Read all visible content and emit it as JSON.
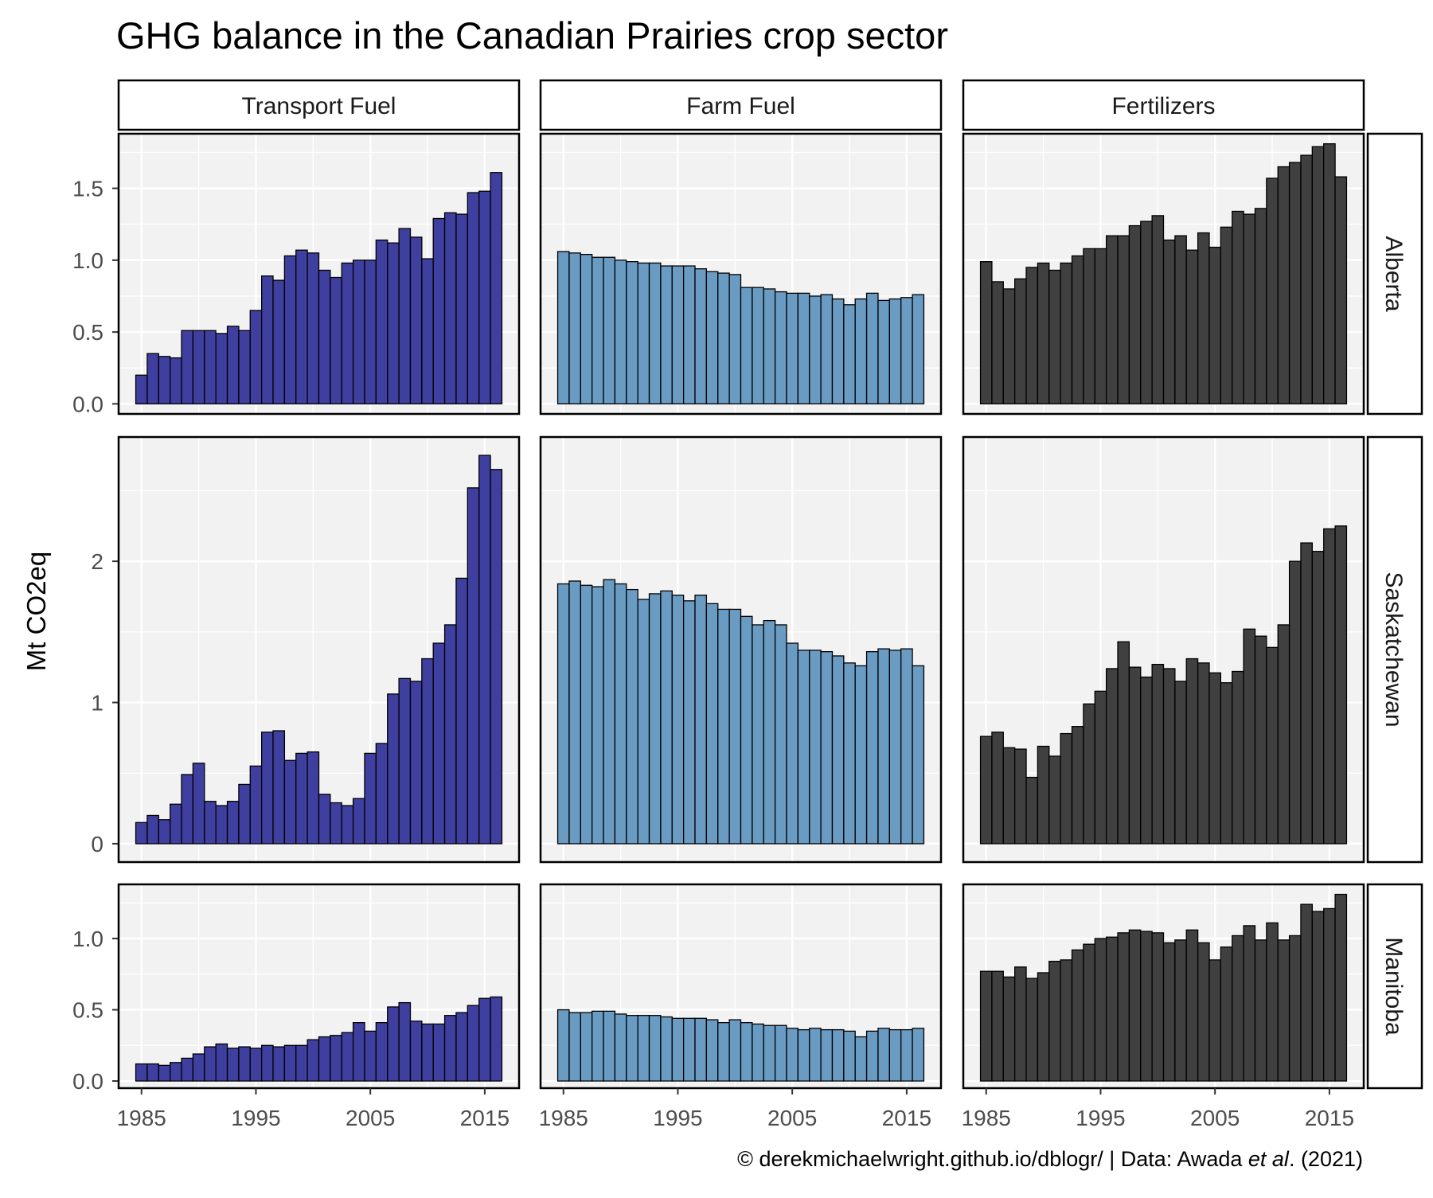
{
  "title": "GHG balance in the Canadian Prairies crop sector",
  "caption": {
    "prefix": "© derekmichaelwright.github.io/dblogr/  |  Data: Awada ",
    "italic": "et al",
    "suffix": ". (2021)"
  },
  "chart_data": {
    "type": "bar",
    "layout": "facet-grid",
    "ylabel": "Mt CO2eq",
    "xlabel": "",
    "years": [
      1985,
      1986,
      1987,
      1988,
      1989,
      1990,
      1991,
      1992,
      1993,
      1994,
      1995,
      1996,
      1997,
      1998,
      1999,
      2000,
      2001,
      2002,
      2003,
      2004,
      2005,
      2006,
      2007,
      2008,
      2009,
      2010,
      2011,
      2012,
      2013,
      2014,
      2015,
      2016
    ],
    "x_ticks": [
      1985,
      1995,
      2005,
      2015
    ],
    "x_range": [
      1983,
      2018
    ],
    "columns": [
      {
        "label": "Transport Fuel",
        "color": "#3f3f9f"
      },
      {
        "label": "Farm Fuel",
        "color": "#6a9bc3"
      },
      {
        "label": "Fertilizers",
        "color": "#404040"
      }
    ],
    "rows": [
      {
        "label": "Alberta",
        "ylim": [
          -0.07,
          1.88
        ],
        "y_ticks": [
          0.0,
          0.5,
          1.0,
          1.5
        ],
        "y_tick_labels": [
          "0.0",
          "0.5",
          "1.0",
          "1.5"
        ],
        "series": [
          {
            "name": "Transport Fuel",
            "values": [
              0.2,
              0.35,
              0.33,
              0.32,
              0.51,
              0.51,
              0.51,
              0.49,
              0.54,
              0.51,
              0.65,
              0.89,
              0.86,
              1.03,
              1.07,
              1.05,
              0.93,
              0.88,
              0.98,
              1.0,
              1.0,
              1.14,
              1.12,
              1.22,
              1.16,
              1.01,
              1.29,
              1.33,
              1.32,
              1.47,
              1.48,
              1.61
            ]
          },
          {
            "name": "Farm Fuel",
            "values": [
              1.06,
              1.05,
              1.04,
              1.02,
              1.02,
              1.0,
              0.99,
              0.98,
              0.98,
              0.96,
              0.96,
              0.96,
              0.94,
              0.92,
              0.91,
              0.9,
              0.81,
              0.81,
              0.8,
              0.78,
              0.77,
              0.77,
              0.75,
              0.76,
              0.73,
              0.69,
              0.73,
              0.77,
              0.72,
              0.73,
              0.74,
              0.76
            ]
          },
          {
            "name": "Fertilizers",
            "values": [
              0.99,
              0.85,
              0.8,
              0.87,
              0.95,
              0.98,
              0.93,
              0.98,
              1.03,
              1.08,
              1.08,
              1.17,
              1.17,
              1.24,
              1.27,
              1.31,
              1.14,
              1.17,
              1.07,
              1.19,
              1.09,
              1.23,
              1.34,
              1.32,
              1.36,
              1.57,
              1.65,
              1.68,
              1.73,
              1.79,
              1.81,
              1.58
            ]
          }
        ]
      },
      {
        "label": "Saskatchewan",
        "ylim": [
          -0.13,
          2.88
        ],
        "y_ticks": [
          0,
          1,
          2
        ],
        "y_tick_labels": [
          "0",
          "1",
          "2"
        ],
        "series": [
          {
            "name": "Transport Fuel",
            "values": [
              0.15,
              0.2,
              0.17,
              0.28,
              0.49,
              0.57,
              0.3,
              0.27,
              0.3,
              0.42,
              0.55,
              0.79,
              0.8,
              0.59,
              0.64,
              0.65,
              0.35,
              0.29,
              0.27,
              0.32,
              0.64,
              0.71,
              1.06,
              1.17,
              1.15,
              1.31,
              1.42,
              1.55,
              1.88,
              2.52,
              2.75,
              2.65
            ]
          },
          {
            "name": "Farm Fuel",
            "values": [
              1.84,
              1.86,
              1.83,
              1.82,
              1.87,
              1.84,
              1.8,
              1.73,
              1.77,
              1.79,
              1.76,
              1.72,
              1.76,
              1.7,
              1.66,
              1.66,
              1.61,
              1.55,
              1.58,
              1.55,
              1.42,
              1.37,
              1.37,
              1.36,
              1.33,
              1.28,
              1.26,
              1.36,
              1.38,
              1.37,
              1.38,
              1.26
            ]
          },
          {
            "name": "Fertilizers",
            "values": [
              0.76,
              0.79,
              0.68,
              0.67,
              0.47,
              0.69,
              0.62,
              0.78,
              0.83,
              0.99,
              1.08,
              1.24,
              1.43,
              1.25,
              1.18,
              1.27,
              1.24,
              1.15,
              1.31,
              1.28,
              1.21,
              1.14,
              1.22,
              1.52,
              1.47,
              1.39,
              1.55,
              2.0,
              2.13,
              2.07,
              2.23,
              2.25
            ]
          }
        ]
      },
      {
        "label": "Manitoba",
        "ylim": [
          -0.05,
          1.38
        ],
        "y_ticks": [
          0.0,
          0.5,
          1.0
        ],
        "y_tick_labels": [
          "0.0",
          "0.5",
          "1.0"
        ],
        "series": [
          {
            "name": "Transport Fuel",
            "values": [
              0.12,
              0.12,
              0.11,
              0.13,
              0.16,
              0.19,
              0.24,
              0.26,
              0.23,
              0.24,
              0.23,
              0.25,
              0.24,
              0.25,
              0.25,
              0.29,
              0.31,
              0.32,
              0.34,
              0.41,
              0.35,
              0.41,
              0.52,
              0.55,
              0.42,
              0.4,
              0.4,
              0.46,
              0.48,
              0.53,
              0.58,
              0.59
            ]
          },
          {
            "name": "Farm Fuel",
            "values": [
              0.5,
              0.48,
              0.48,
              0.49,
              0.49,
              0.47,
              0.46,
              0.46,
              0.46,
              0.45,
              0.44,
              0.44,
              0.44,
              0.43,
              0.41,
              0.43,
              0.41,
              0.4,
              0.39,
              0.39,
              0.37,
              0.36,
              0.37,
              0.36,
              0.36,
              0.35,
              0.31,
              0.35,
              0.37,
              0.36,
              0.36,
              0.37
            ]
          },
          {
            "name": "Fertilizers",
            "values": [
              0.77,
              0.77,
              0.73,
              0.8,
              0.72,
              0.76,
              0.84,
              0.85,
              0.92,
              0.96,
              1.0,
              1.01,
              1.04,
              1.06,
              1.05,
              1.04,
              0.97,
              0.99,
              1.06,
              0.97,
              0.85,
              0.94,
              1.02,
              1.09,
              0.99,
              1.11,
              0.99,
              1.02,
              1.24,
              1.19,
              1.21,
              1.31
            ]
          }
        ]
      }
    ]
  }
}
